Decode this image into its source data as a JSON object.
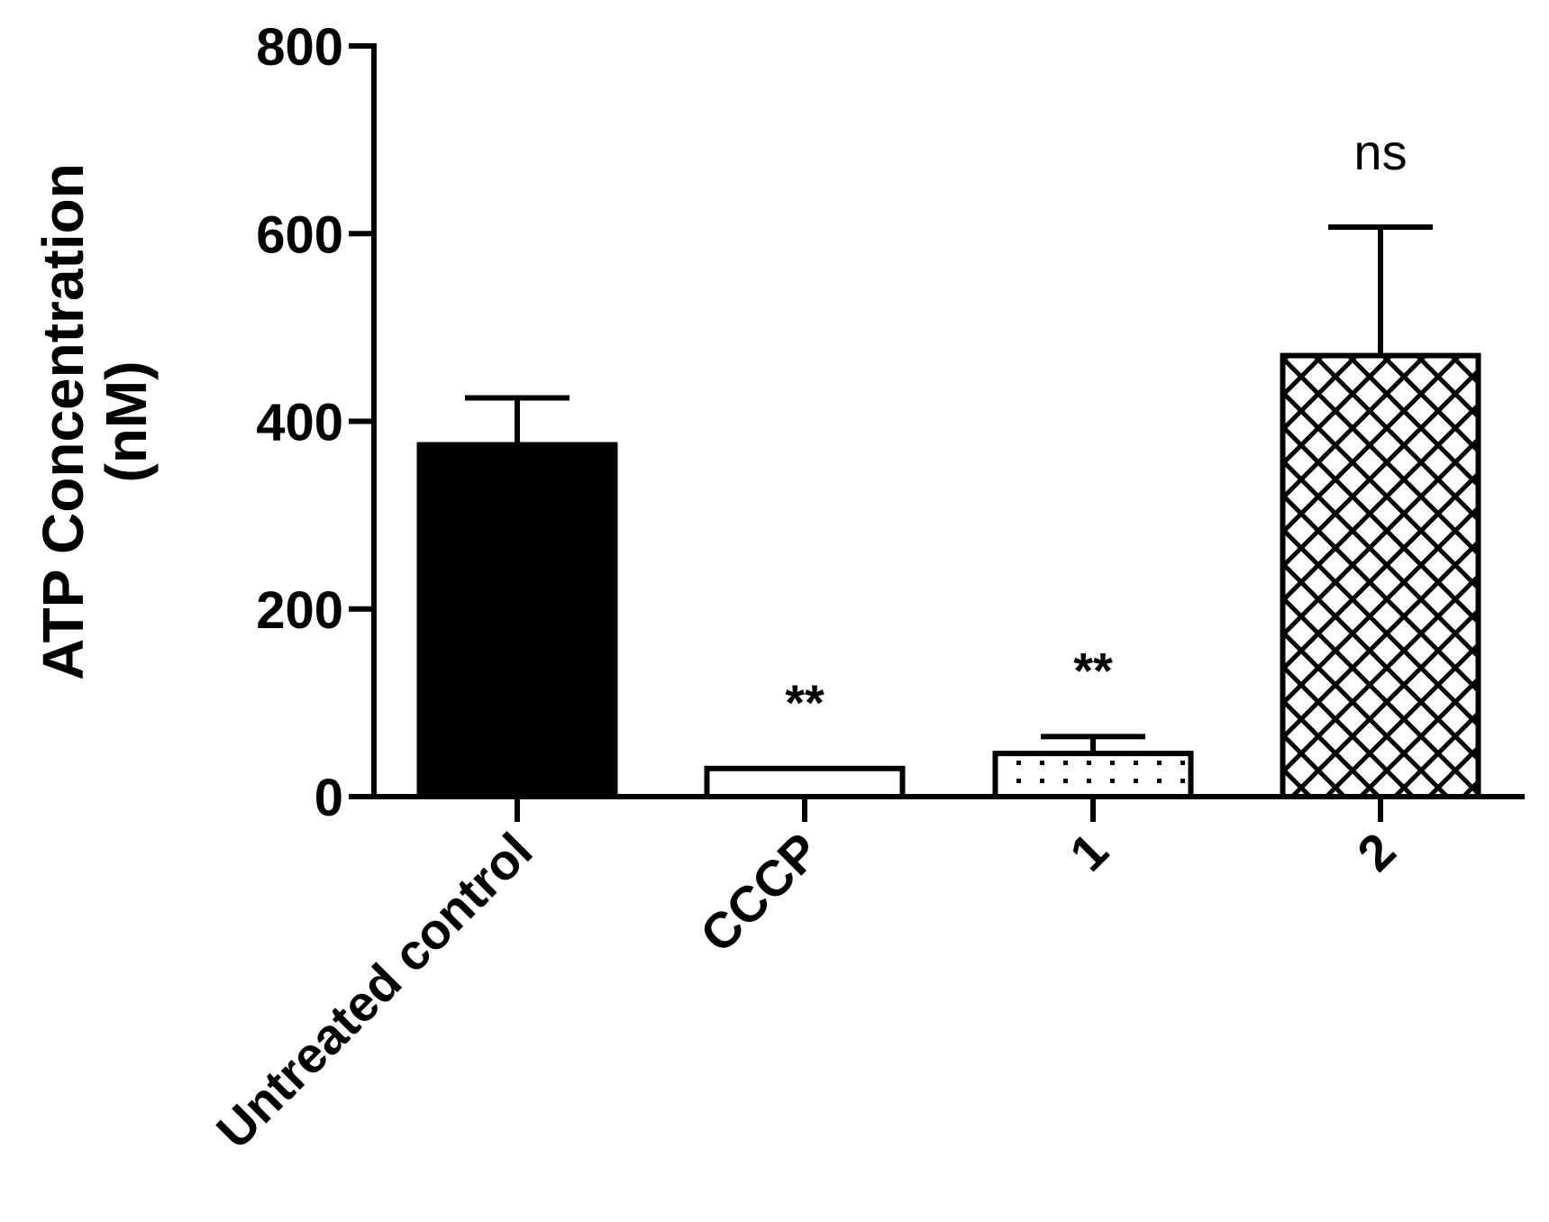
{
  "chart_data": {
    "type": "bar",
    "title": "",
    "xlabel": "",
    "ylabel_lines": [
      "ATP Concentration",
      "(nM)"
    ],
    "ylim": [
      0,
      800
    ],
    "yticks": [
      0,
      200,
      400,
      600,
      800
    ],
    "categories": [
      "Untreated control",
      "CCCP",
      "1",
      "2"
    ],
    "values": [
      375,
      30,
      46,
      470
    ],
    "errors": [
      50,
      0,
      18,
      137
    ],
    "significance": [
      "",
      "**",
      "**",
      "ns"
    ],
    "patterns": [
      "solid",
      "none",
      "dots",
      "crosshatch"
    ],
    "grid": false,
    "legend": false
  },
  "colors": {
    "ink": "#000000",
    "background": "#ffffff"
  }
}
